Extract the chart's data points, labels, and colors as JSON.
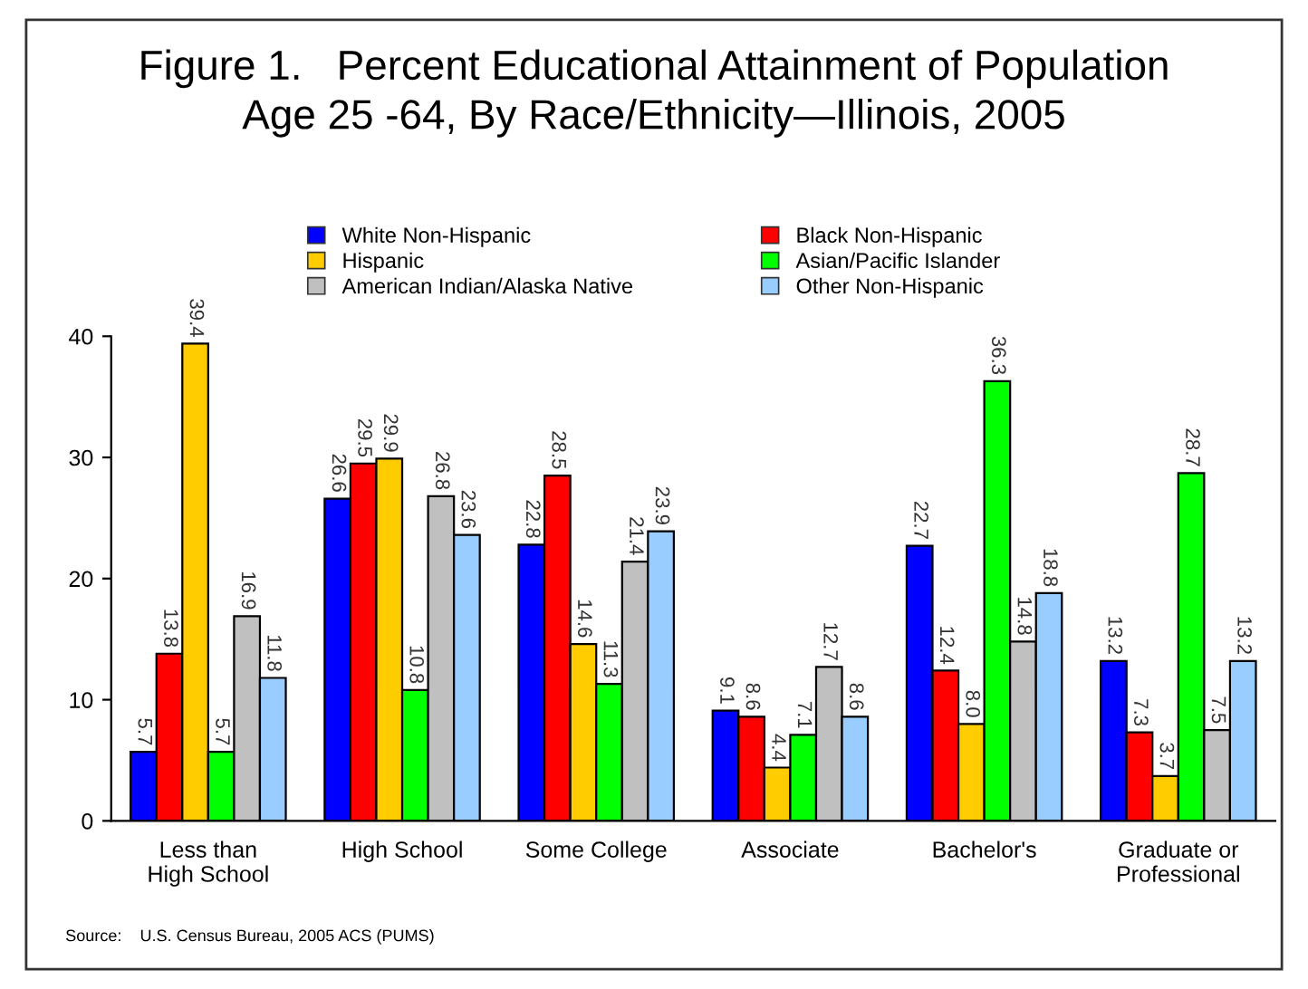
{
  "chart_data": {
    "type": "bar",
    "title": "Figure 1.   Percent Educational Attainment of Population\nAge 25 -64, By Race/Ethnicity—Illinois, 2005",
    "categories": [
      "Less than\nHigh School",
      "High School",
      "Some College",
      "Associate",
      "Bachelor's",
      "Graduate or\nProfessional"
    ],
    "series": [
      {
        "name": "White Non-Hispanic",
        "color": "#0000ff",
        "values": [
          5.7,
          26.6,
          22.8,
          9.1,
          22.7,
          13.2
        ],
        "value_labels": [
          "5.7",
          "26.6",
          "22.8",
          "9.1",
          "22.7",
          "13.2"
        ]
      },
      {
        "name": "Black Non-Hispanic",
        "color": "#ff0000",
        "values": [
          13.8,
          29.5,
          28.5,
          8.6,
          12.4,
          7.3
        ],
        "value_labels": [
          "13.8",
          "29.5",
          "28.5",
          "8.6",
          "12.4",
          "7.3"
        ]
      },
      {
        "name": "Hispanic",
        "color": "#ffcc00",
        "values": [
          39.4,
          29.9,
          14.6,
          4.4,
          8.0,
          3.7
        ],
        "value_labels": [
          "39.4",
          "29.9",
          "14.6",
          "4.4",
          "8.0",
          "3.7"
        ]
      },
      {
        "name": "Asian/Pacific Islander",
        "color": "#00ff00",
        "values": [
          5.7,
          10.8,
          11.3,
          7.1,
          36.3,
          28.7
        ],
        "value_labels": [
          "5.7",
          "10.8",
          "11.3",
          "7.1",
          "36.3",
          "28.7"
        ]
      },
      {
        "name": "American Indian/Alaska Native",
        "color": "#c0c0c0",
        "values": [
          16.9,
          26.8,
          21.4,
          12.7,
          14.8,
          7.5
        ],
        "value_labels": [
          "16.9",
          "26.8",
          "21.4",
          "12.7",
          "14.8",
          "7.5"
        ]
      },
      {
        "name": "Other Non-Hispanic",
        "color": "#99ccff",
        "values": [
          11.8,
          23.6,
          23.9,
          8.6,
          18.8,
          13.2
        ],
        "value_labels": [
          "11.8",
          "23.6",
          "23.9",
          "8.6",
          "18.8",
          "13.2"
        ]
      }
    ],
    "ylim": [
      0,
      40
    ],
    "yticks": [
      0,
      10,
      20,
      30,
      40
    ],
    "grid": false,
    "legend": "top",
    "annotations": [
      "Source:    U.S. Census Bureau, 2005 ACS (PUMS)"
    ]
  }
}
